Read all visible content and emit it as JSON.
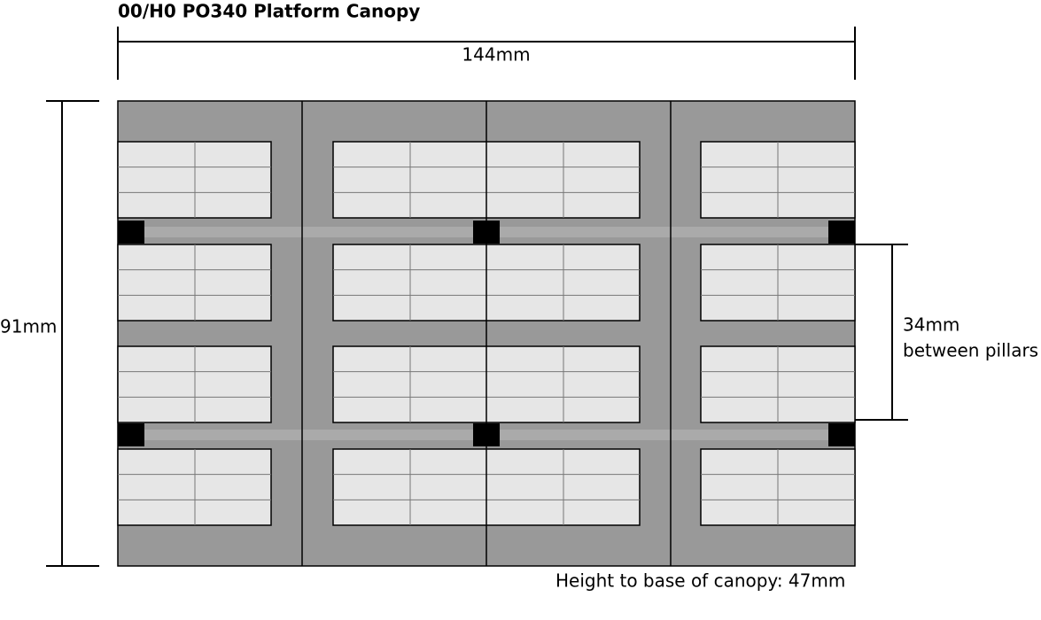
{
  "title": "00/H0 PO340 Platform Canopy",
  "dimensions": {
    "width": "144mm",
    "depth": "91mm",
    "pillar_spacing": "34mm",
    "pillar_spacing_note": "between pillars"
  },
  "footer": "Height to base of canopy: 47mm"
}
